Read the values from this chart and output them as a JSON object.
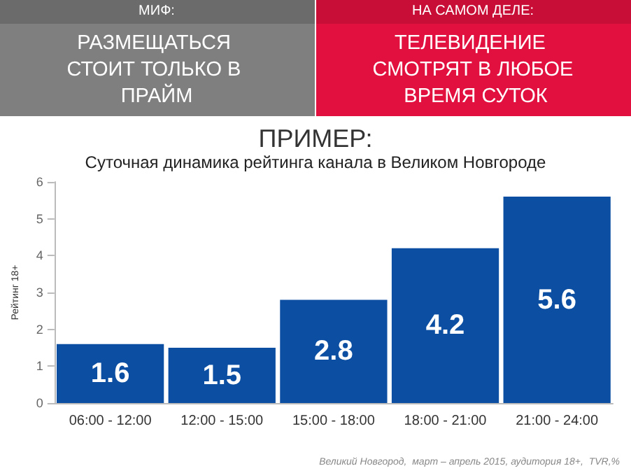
{
  "chart_data": {
    "type": "bar",
    "title": "ПРИМЕР:",
    "subtitle": "Суточная динамика рейтинга канала в Великом Новгороде",
    "ylabel": "Рейтинг 18+",
    "annotations": [
      "МИФ:",
      "РАЗМЕЩАТЬСЯ СТОИТ ТОЛЬКО В ПРАЙМ",
      "НА САМОМ ДЕЛЕ:",
      "ТЕЛЕВИДЕНИЕ СМОТРЯТ В ЛЮБОЕ ВРЕМЯ СУТОК",
      "Великий Новгород,  март – апрель 2015, аудитория 18+,  TVR,%"
    ],
    "categories": [
      "06:00 - 12:00",
      "12:00 - 15:00",
      "15:00 - 18:00",
      "18:00 - 21:00",
      "21:00 - 24:00"
    ],
    "values": [
      1.6,
      1.5,
      2.8,
      4.2,
      5.6
    ],
    "color": "#0b4ea2",
    "ylim": [
      0,
      6
    ],
    "yticks": [
      0,
      1,
      2,
      3,
      4,
      5,
      6
    ],
    "grid": false,
    "data_labels": true
  }
}
